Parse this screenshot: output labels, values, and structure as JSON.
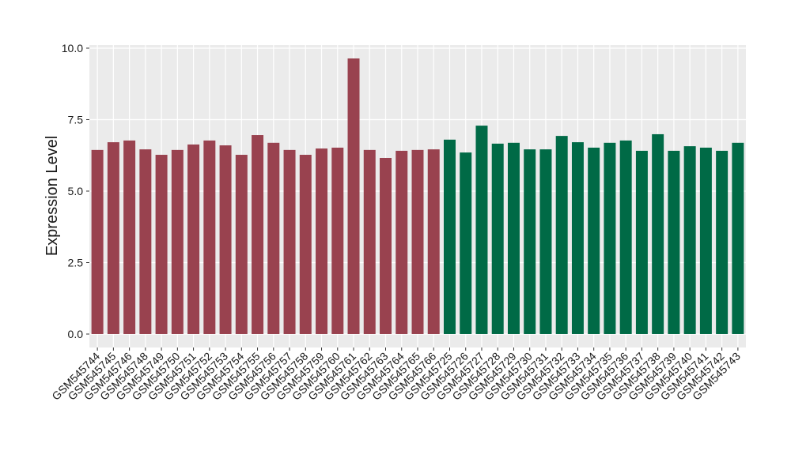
{
  "chart_data": {
    "type": "bar",
    "y_label": "Expression Level",
    "categories": [
      "GSM545744",
      "GSM545745",
      "GSM545746",
      "GSM545748",
      "GSM545749",
      "GSM545750",
      "GSM545751",
      "GSM545752",
      "GSM545753",
      "GSM545754",
      "GSM545755",
      "GSM545756",
      "GSM545757",
      "GSM545758",
      "GSM545759",
      "GSM545760",
      "GSM545761",
      "GSM545762",
      "GSM545763",
      "GSM545764",
      "GSM545765",
      "GSM545766",
      "GSM545725",
      "GSM545726",
      "GSM545727",
      "GSM545728",
      "GSM545729",
      "GSM545730",
      "GSM545731",
      "GSM545732",
      "GSM545733",
      "GSM545734",
      "GSM545735",
      "GSM545736",
      "GSM545737",
      "GSM545738",
      "GSM545739",
      "GSM545740",
      "GSM545741",
      "GSM545742",
      "GSM545743"
    ],
    "values": [
      6.44,
      6.71,
      6.77,
      6.46,
      6.27,
      6.44,
      6.63,
      6.77,
      6.6,
      6.27,
      6.96,
      6.69,
      6.44,
      6.27,
      6.49,
      6.52,
      9.64,
      6.44,
      6.16,
      6.41,
      6.44,
      6.46,
      6.8,
      6.35,
      7.29,
      6.66,
      6.69,
      6.46,
      6.46,
      6.93,
      6.71,
      6.52,
      6.69,
      6.77,
      6.41,
      6.99,
      6.41,
      6.57,
      6.52,
      6.41,
      6.69
    ],
    "colors": [
      "#99424f",
      "#99424f",
      "#99424f",
      "#99424f",
      "#99424f",
      "#99424f",
      "#99424f",
      "#99424f",
      "#99424f",
      "#99424f",
      "#99424f",
      "#99424f",
      "#99424f",
      "#99424f",
      "#99424f",
      "#99424f",
      "#99424f",
      "#99424f",
      "#99424f",
      "#99424f",
      "#99424f",
      "#99424f",
      "#006a46",
      "#006a46",
      "#006a46",
      "#006a46",
      "#006a46",
      "#006a46",
      "#006a46",
      "#006a46",
      "#006a46",
      "#006a46",
      "#006a46",
      "#006a46",
      "#006a46",
      "#006a46",
      "#006a46",
      "#006a46",
      "#006a46",
      "#006a46",
      "#006a46"
    ],
    "ylim": [
      -0.47,
      10.11
    ],
    "yticks": [
      {
        "value": 0,
        "label": "0.0"
      },
      2.5,
      {
        "value": 5,
        "label": "5.0"
      },
      7.5,
      {
        "value": 10,
        "label": "10.0"
      }
    ],
    "grid": true
  }
}
